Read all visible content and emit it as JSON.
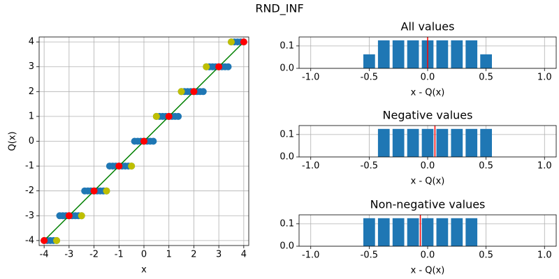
{
  "title": "RND_INF",
  "chart_data": [
    {
      "type": "scatter",
      "xlabel": "x",
      "ylabel": "Q(x)",
      "xlim": [
        -4.2,
        4.2
      ],
      "ylim": [
        -4.2,
        4.2
      ],
      "xticks": [
        -4,
        -3,
        -2,
        -1,
        0,
        1,
        2,
        3,
        4
      ],
      "yticks": [
        -4,
        -3,
        -2,
        -1,
        0,
        1,
        2,
        3,
        4
      ],
      "grid": true,
      "series": [
        {
          "color": "#1f77b4",
          "x": [
            -4,
            -3.875,
            -3.75,
            -3.625,
            -3.5,
            -3.375,
            -3.25,
            -3.125,
            -3,
            -2.875,
            -2.75,
            -2.625,
            -2.5,
            -2.375,
            -2.25,
            -2.125,
            -2,
            -1.875,
            -1.75,
            -1.625,
            -1.5,
            -1.375,
            -1.25,
            -1.125,
            -1,
            -0.875,
            -0.75,
            -0.625,
            -0.5,
            -0.375,
            -0.25,
            -0.125,
            0,
            0.125,
            0.25,
            0.375,
            0.5,
            0.625,
            0.75,
            0.875,
            1,
            1.125,
            1.25,
            1.375,
            1.5,
            1.625,
            1.75,
            1.875,
            2,
            2.125,
            2.25,
            2.375,
            2.5,
            2.625,
            2.75,
            2.875,
            3,
            3.125,
            3.25,
            3.375,
            3.5,
            3.625,
            3.75,
            3.875,
            4
          ],
          "values": [
            -4,
            -4,
            -4,
            -4,
            -4,
            -3,
            -3,
            -3,
            -3,
            -3,
            -3,
            -3,
            -3,
            -2,
            -2,
            -2,
            -2,
            -2,
            -2,
            -2,
            -2,
            -1,
            -1,
            -1,
            -1,
            -1,
            -1,
            -1,
            -1,
            0,
            0,
            0,
            0,
            0,
            0,
            0,
            1,
            1,
            1,
            1,
            1,
            1,
            1,
            1,
            2,
            2,
            2,
            2,
            2,
            2,
            2,
            2,
            3,
            3,
            3,
            3,
            3,
            3,
            3,
            3,
            4,
            4,
            4,
            4,
            4
          ]
        },
        {
          "color": "#008000",
          "line": true,
          "x": [
            -4,
            4
          ],
          "values": [
            -4,
            4
          ]
        },
        {
          "color": "#bfbf00",
          "x": [
            -3.5,
            -2.5,
            -1.5,
            -0.5,
            0.5,
            1.5,
            2.5,
            3.5
          ],
          "values": [
            -4,
            -3,
            -2,
            -1,
            1,
            2,
            3,
            4
          ]
        },
        {
          "color": "#ff0000",
          "x": [
            -4,
            -3,
            -2,
            -1,
            0,
            1,
            2,
            3,
            4
          ],
          "values": [
            -4,
            -3,
            -2,
            -1,
            0,
            1,
            2,
            3,
            4
          ]
        }
      ]
    },
    {
      "type": "bar",
      "title": "All values",
      "xlabel": "x - Q(x)",
      "xlim": [
        -1.1,
        1.1
      ],
      "ylim": [
        0,
        0.14
      ],
      "xticks": [
        {
          "value": -1,
          "label": "-1.0"
        },
        -0.5,
        {
          "value": 0,
          "label": "0.0"
        },
        0.5,
        {
          "value": 1,
          "label": "1.0"
        }
      ],
      "yticks": [
        {
          "value": 0,
          "label": "0.0"
        },
        0.1
      ],
      "grid": true,
      "color": "#1f77b4",
      "x": [
        -0.5,
        -0.375,
        -0.25,
        -0.125,
        0,
        0.125,
        0.25,
        0.375,
        0.5
      ],
      "values": [
        0.0625,
        0.125,
        0.125,
        0.125,
        0.125,
        0.125,
        0.125,
        0.125,
        0.0625
      ],
      "vline": 0,
      "vline_color": "#ff0000"
    },
    {
      "type": "bar",
      "title": "Negative values",
      "xlabel": "x - Q(x)",
      "xlim": [
        -1.1,
        1.1
      ],
      "ylim": [
        0,
        0.14
      ],
      "xticks": [
        {
          "value": -1,
          "label": "-1.0"
        },
        -0.5,
        {
          "value": 0,
          "label": "0.0"
        },
        0.5,
        {
          "value": 1,
          "label": "1.0"
        }
      ],
      "yticks": [
        {
          "value": 0,
          "label": "0.0"
        },
        0.1
      ],
      "grid": true,
      "color": "#1f77b4",
      "x": [
        -0.375,
        -0.25,
        -0.125,
        0,
        0.125,
        0.25,
        0.375,
        0.5
      ],
      "values": [
        0.125,
        0.125,
        0.125,
        0.125,
        0.125,
        0.125,
        0.125,
        0.125
      ],
      "vline": 0.0625,
      "vline_color": "#ff0000"
    },
    {
      "type": "bar",
      "title": "Non-negative values",
      "xlabel": "x - Q(x)",
      "xlim": [
        -1.1,
        1.1
      ],
      "ylim": [
        0,
        0.14
      ],
      "xticks": [
        {
          "value": -1,
          "label": "-1.0"
        },
        -0.5,
        {
          "value": 0,
          "label": "0.0"
        },
        0.5,
        {
          "value": 1,
          "label": "1.0"
        }
      ],
      "yticks": [
        {
          "value": 0,
          "label": "0.0"
        },
        0.1
      ],
      "grid": true,
      "color": "#1f77b4",
      "x": [
        -0.5,
        -0.375,
        -0.25,
        -0.125,
        0,
        0.125,
        0.25,
        0.375
      ],
      "values": [
        0.125,
        0.125,
        0.125,
        0.125,
        0.125,
        0.125,
        0.125,
        0.125
      ],
      "vline": -0.0625,
      "vline_color": "#ff0000"
    }
  ]
}
